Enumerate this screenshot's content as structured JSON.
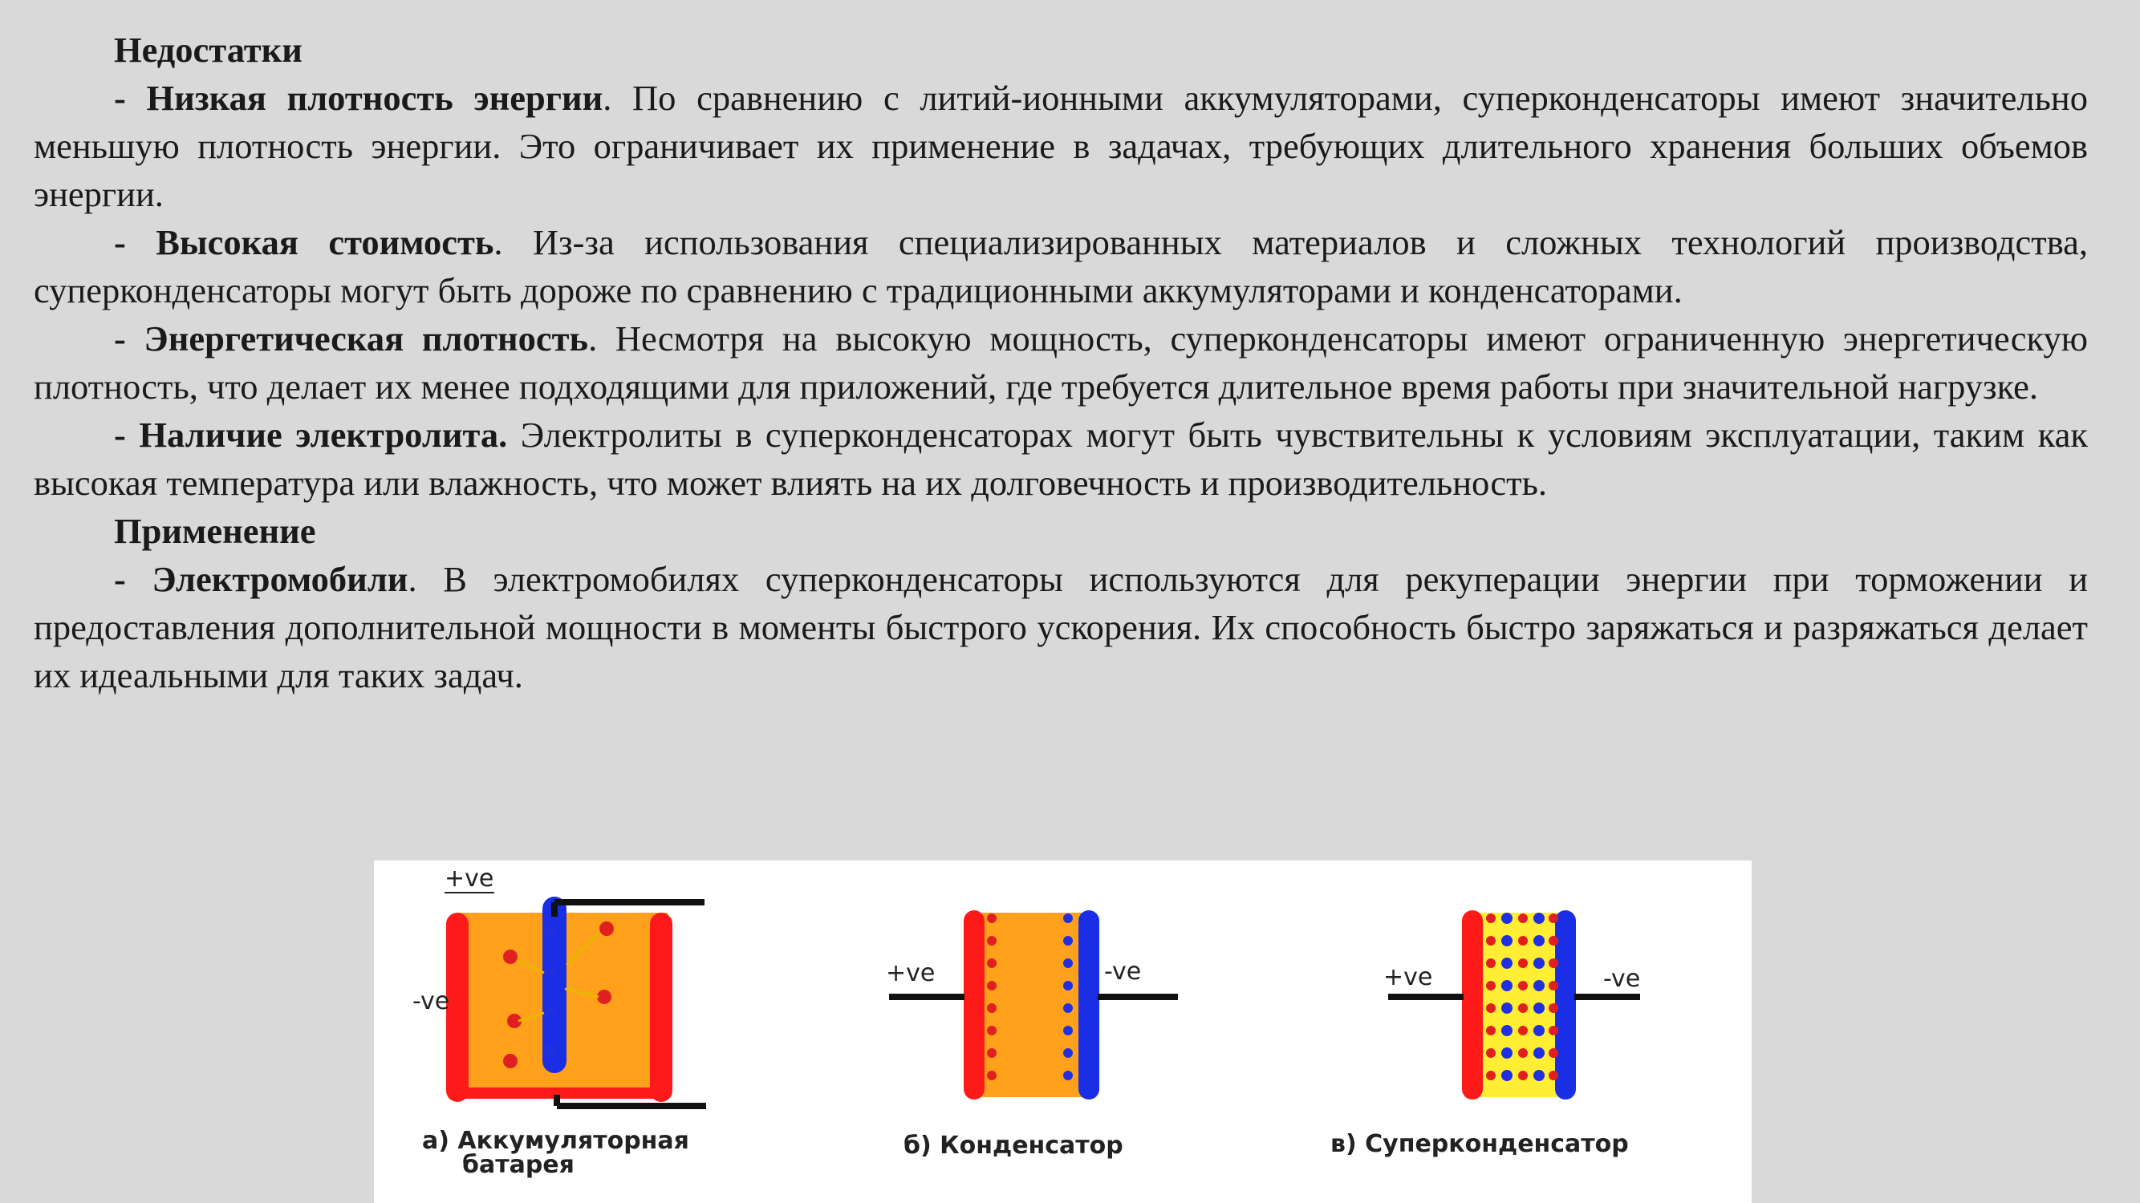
{
  "text": {
    "disadvantages_heading": "Недостатки",
    "item1_title": "- Низкая плотность энергии",
    "item1_body": ". По сравнению с литий-ионными аккумуляторами, суперконденсаторы имеют значительно меньшую плотность энергии. Это ограничивает их применение в задачах, требующих длительного хранения больших объемов энергии.",
    "item2_title": "- Высокая стоимость",
    "item2_body": ". Из-за использования специализированных материалов и сложных технологий производства, суперконденсаторы могут быть дороже по сравнению с традиционными аккумуляторами и конденсаторами.",
    "item3_title": "- Энергетическая плотность",
    "item3_body": ". Несмотря на высокую мощность, суперконденсаторы имеют ограниченную энергетическую плотность, что делает их менее подходящими для приложений, где требуется длительное время работы при значительной нагрузке.",
    "item4_title": "- Наличие электролита.",
    "item4_body": " Электролиты в суперконденсаторах могут быть чувствительны к условиям эксплуатации, таким как высокая температура или влажность, что может влиять на их долговечность и производительность.",
    "application_heading": "Применение",
    "item5_title": "- Электромобили",
    "item5_body": ". В электромобилях суперконденсаторы используются для рекуперации энергии при торможении и предоставления дополнительной мощности в моменты быстрого ускорения. Их способность быстро заряжаться и разряжаться делает их идеальными для таких задач."
  },
  "figure": {
    "battery": {
      "caption_line1": "а) Аккумуляторная",
      "caption_line2": "батарея",
      "plus_label": "+ve",
      "minus_label": "-ve"
    },
    "capacitor": {
      "caption": "б) Конденсатор",
      "plus_label": "+ve",
      "minus_label": "-ve"
    },
    "supercapacitor": {
      "caption": "в) Суперконденсатор",
      "plus_label": "+ve",
      "minus_label": "-ve"
    },
    "colors": {
      "positive_plate": "#ff1a1a",
      "negative_plate": "#1a2ee6",
      "electrolyte": "#ffa11a",
      "super_electrolyte": "#ffee33",
      "ion_positive": "#e02020",
      "ion_negative": "#2030e0",
      "wire": "#111111"
    }
  }
}
